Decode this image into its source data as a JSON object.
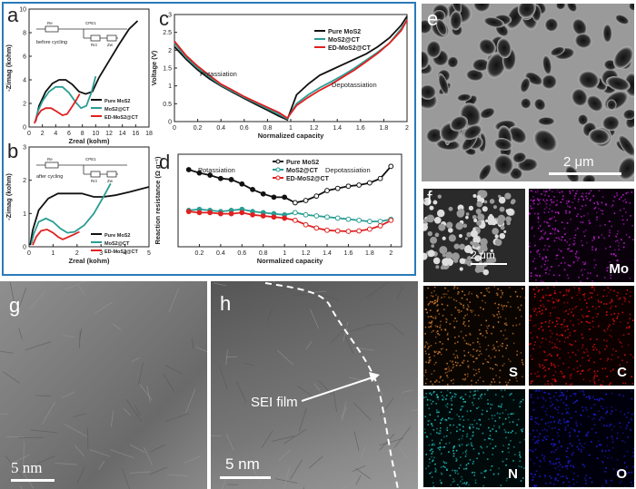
{
  "panels": {
    "a": {
      "label": "a",
      "note": "before cycling"
    },
    "b": {
      "label": "b",
      "note": "after cycling"
    },
    "c": {
      "label": "c",
      "region_left": "Potassiation",
      "region_right": "Depotassiation"
    },
    "d": {
      "label": "d",
      "region_left": "Potassiation",
      "region_right": "Depotassiation"
    },
    "e": {
      "label": "e",
      "scale": "2 μm"
    },
    "f": {
      "label": "f",
      "scale": "2 μm",
      "maps": [
        "Mo",
        "S",
        "C",
        "N",
        "O"
      ]
    },
    "g": {
      "label": "g",
      "scale": "5 nm"
    },
    "h": {
      "label": "h",
      "scale": "5 nm",
      "annotation": "SEI film"
    }
  },
  "circuit": {
    "labels": [
      "Re",
      "CPE1",
      "Rct",
      "Zw"
    ]
  },
  "colors": {
    "black": "#111111",
    "teal": "#2a9d93",
    "red": "#e02020",
    "frame": "#2a7ab8",
    "Mo": "#c020d0",
    "S": "#d07a30",
    "C": "#e01010",
    "N": "#20c0c0",
    "O": "#2020e0"
  },
  "chart_data": [
    {
      "id": "a",
      "type": "line",
      "xlabel": "Zreal (kohm)",
      "ylabel": "-Zimag (kohm)",
      "xlim": [
        0,
        18
      ],
      "ylim": [
        0,
        10
      ],
      "xticks": [
        0,
        2,
        4,
        6,
        8,
        10,
        12,
        14,
        16,
        18
      ],
      "yticks": [
        0,
        2,
        4,
        6,
        8,
        10
      ],
      "legend": "right",
      "series": [
        {
          "name": "Pure MoS2",
          "color": "black",
          "x": [
            1.0,
            1.5,
            2.5,
            3.5,
            4.5,
            5.5,
            6.5,
            7.5,
            8.5,
            9.5,
            10.5,
            12,
            13.5,
            15,
            16.3
          ],
          "y": [
            0.5,
            1.8,
            3.0,
            3.7,
            4.0,
            4.0,
            3.6,
            3.0,
            2.8,
            3.0,
            4.2,
            5.6,
            7.0,
            8.3,
            9.0
          ]
        },
        {
          "name": "MoS2@CT",
          "color": "teal",
          "x": [
            0.9,
            1.3,
            2.0,
            3.0,
            4.0,
            5.0,
            6.0,
            7.0,
            7.8,
            8.6,
            9.4,
            10.0
          ],
          "y": [
            0.4,
            1.3,
            2.2,
            3.0,
            3.4,
            3.4,
            2.9,
            2.1,
            1.6,
            1.8,
            3.0,
            4.3
          ]
        },
        {
          "name": "ED-MoS2@CT",
          "color": "red",
          "x": [
            0.8,
            1.2,
            1.8,
            2.5,
            3.3,
            4.2,
            5.0,
            5.7,
            6.3,
            7.0,
            7.6
          ],
          "y": [
            0.3,
            0.9,
            1.4,
            1.6,
            1.6,
            1.3,
            1.0,
            1.1,
            1.6,
            2.2,
            2.8
          ]
        }
      ]
    },
    {
      "id": "b",
      "type": "line",
      "xlabel": "Zreal (kohm)",
      "ylabel": "-Zimag (kohm)",
      "xlim": [
        0,
        5
      ],
      "ylim": [
        0,
        3
      ],
      "xticks": [
        0,
        1,
        2,
        3,
        4,
        5
      ],
      "yticks": [
        0,
        1,
        2,
        3
      ],
      "legend": "right",
      "series": [
        {
          "name": "Pure MoS2",
          "color": "black",
          "x": [
            0.05,
            0.15,
            0.4,
            0.8,
            1.2,
            1.7,
            2.2,
            2.7,
            3.1,
            3.6,
            4.2,
            5.0
          ],
          "y": [
            0.05,
            0.5,
            1.1,
            1.45,
            1.6,
            1.6,
            1.6,
            1.5,
            1.5,
            1.55,
            1.65,
            1.8
          ]
        },
        {
          "name": "MoS2@CT",
          "color": "teal",
          "x": [
            0.1,
            0.2,
            0.4,
            0.7,
            1.0,
            1.3,
            1.6,
            1.9,
            2.3,
            2.7,
            3.1,
            3.4
          ],
          "y": [
            0.1,
            0.4,
            0.75,
            0.85,
            0.75,
            0.55,
            0.42,
            0.45,
            0.65,
            1.0,
            1.5,
            1.9
          ]
        },
        {
          "name": "ED-MoS2@CT",
          "color": "red",
          "x": [
            0.15,
            0.3,
            0.5,
            0.75,
            1.0,
            1.2,
            1.4,
            1.6,
            1.9,
            2.1
          ],
          "y": [
            0.05,
            0.3,
            0.48,
            0.52,
            0.42,
            0.3,
            0.22,
            0.28,
            0.38,
            0.45
          ]
        }
      ]
    },
    {
      "id": "c",
      "type": "line",
      "xlabel": "Normalized capacity",
      "ylabel": "Voltage (V)",
      "xlim": [
        0,
        2
      ],
      "ylim": [
        0,
        3
      ],
      "xticks": [
        0.0,
        0.2,
        0.4,
        0.6,
        0.8,
        1.0,
        1.2,
        1.4,
        1.6,
        1.8,
        2.0
      ],
      "yticks": [
        0,
        0.5,
        1.0,
        1.5,
        2.0,
        2.5,
        3.0
      ],
      "legend": "top-right",
      "series": [
        {
          "name": "Pure MoS2",
          "color": "black",
          "x": [
            0.0,
            0.1,
            0.2,
            0.3,
            0.4,
            0.5,
            0.6,
            0.7,
            0.8,
            0.9,
            0.97,
            1.05,
            1.15,
            1.25,
            1.35,
            1.45,
            1.55,
            1.65,
            1.75,
            1.85,
            1.95,
            2.0
          ],
          "y": [
            2.1,
            1.75,
            1.45,
            1.2,
            1.0,
            0.82,
            0.65,
            0.48,
            0.32,
            0.15,
            0.05,
            0.75,
            1.05,
            1.3,
            1.45,
            1.6,
            1.75,
            1.9,
            2.1,
            2.35,
            2.7,
            2.95
          ]
        },
        {
          "name": "MoS2@CT",
          "color": "teal",
          "x": [
            0.0,
            0.1,
            0.2,
            0.3,
            0.4,
            0.5,
            0.6,
            0.7,
            0.8,
            0.9,
            0.97,
            1.05,
            1.15,
            1.25,
            1.35,
            1.45,
            1.55,
            1.65,
            1.75,
            1.85,
            1.95,
            2.0
          ],
          "y": [
            2.2,
            1.8,
            1.5,
            1.25,
            1.02,
            0.85,
            0.68,
            0.52,
            0.36,
            0.2,
            0.08,
            0.5,
            0.75,
            0.95,
            1.12,
            1.3,
            1.5,
            1.72,
            1.95,
            2.2,
            2.6,
            2.85
          ]
        },
        {
          "name": "ED-MoS2@CT",
          "color": "red",
          "x": [
            0.0,
            0.1,
            0.2,
            0.3,
            0.4,
            0.5,
            0.6,
            0.7,
            0.8,
            0.9,
            0.97,
            1.05,
            1.15,
            1.25,
            1.35,
            1.45,
            1.55,
            1.65,
            1.75,
            1.85,
            1.95,
            2.0
          ],
          "y": [
            2.25,
            1.85,
            1.55,
            1.3,
            1.05,
            0.88,
            0.7,
            0.55,
            0.4,
            0.25,
            0.1,
            0.45,
            0.68,
            0.88,
            1.05,
            1.25,
            1.45,
            1.68,
            1.92,
            2.2,
            2.55,
            2.85
          ]
        }
      ]
    },
    {
      "id": "d",
      "type": "line",
      "xlabel": "Normalized capacity",
      "ylabel": "Reaction resistance (Ω g⁻¹)",
      "xlim": [
        0,
        2.1
      ],
      "ylim": [
        0,
        4.2
      ],
      "xticks": [
        0.2,
        0.4,
        0.6,
        0.8,
        1.0,
        1.2,
        1.4,
        1.6,
        1.8,
        2.0
      ],
      "legend": "top-right",
      "series": [
        {
          "name": "Pure MoS2",
          "color": "black",
          "x": [
            0.1,
            0.2,
            0.3,
            0.4,
            0.5,
            0.6,
            0.7,
            0.8,
            0.9,
            1.0,
            1.1,
            1.2,
            1.3,
            1.4,
            1.5,
            1.6,
            1.7,
            1.8,
            1.9,
            2.0
          ],
          "y": [
            3.5,
            3.35,
            3.25,
            3.1,
            3.05,
            2.85,
            2.6,
            2.4,
            2.25,
            2.25,
            2.0,
            2.1,
            2.3,
            2.55,
            2.65,
            2.75,
            2.8,
            2.9,
            3.1,
            3.65
          ]
        },
        {
          "name": "MoS2@CT",
          "color": "teal",
          "x": [
            0.1,
            0.2,
            0.3,
            0.4,
            0.5,
            0.6,
            0.7,
            0.8,
            0.9,
            1.0,
            1.1,
            1.2,
            1.3,
            1.4,
            1.5,
            1.6,
            1.7,
            1.8,
            1.9,
            2.0
          ],
          "y": [
            1.65,
            1.7,
            1.65,
            1.6,
            1.65,
            1.7,
            1.6,
            1.55,
            1.5,
            1.45,
            1.55,
            1.45,
            1.4,
            1.35,
            1.3,
            1.25,
            1.2,
            1.15,
            1.15,
            1.25
          ]
        },
        {
          "name": "ED-MoS2@CT",
          "color": "red",
          "x": [
            0.1,
            0.2,
            0.3,
            0.4,
            0.5,
            0.6,
            0.7,
            0.8,
            0.9,
            1.0,
            1.1,
            1.2,
            1.3,
            1.4,
            1.5,
            1.6,
            1.7,
            1.8,
            1.9,
            2.0
          ],
          "y": [
            1.6,
            1.55,
            1.55,
            1.5,
            1.5,
            1.55,
            1.45,
            1.4,
            1.35,
            1.3,
            1.2,
            1.0,
            0.85,
            0.75,
            0.72,
            0.7,
            0.72,
            0.8,
            0.95,
            1.2
          ]
        }
      ]
    }
  ]
}
